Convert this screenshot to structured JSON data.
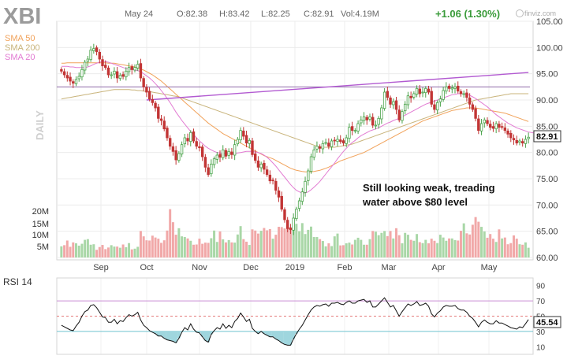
{
  "header": {
    "symbol": "XBI",
    "date": "May 24",
    "open": "O:82.38",
    "high": "H:83.42",
    "low": "L:82.25",
    "close": "C:82.91",
    "volume": "Vol:4.19M",
    "change": "+1.06 (1.30%)",
    "brand": "finviz.com"
  },
  "legend": {
    "sma50": "SMA 50",
    "sma200": "SMA 200",
    "sma20": "SMA 20"
  },
  "timeframe_label": "DAILY",
  "annotation": [
    "Still looking weak, treading",
    "water above $80 level"
  ],
  "last_price_label": "82.91",
  "rsi": {
    "title": "RSI 14",
    "last_label": "45.54",
    "ticks": [
      "90",
      "70",
      "50",
      "30",
      "10"
    ]
  },
  "colors": {
    "up": "#4aa34a",
    "down": "#c23535",
    "sma20": "#e27bd2",
    "sma50": "#f1a25a",
    "sma200": "#c8b37a",
    "trendline": "#b25ad1",
    "hline": "#8e6aa8",
    "rsi_line": "#111111",
    "rsi_band_high": "#c98bd4",
    "rsi_band_low": "#6ec2cf"
  },
  "chart_data": {
    "type": "candlestick",
    "price_axis": {
      "ticks": [
        "105.00",
        "100.00",
        "95.00",
        "90.00",
        "85.00",
        "80.00",
        "75.00",
        "70.00",
        "65.00",
        "60.00"
      ],
      "range": [
        60,
        105
      ]
    },
    "volume_axis": {
      "ticks": [
        "20M",
        "15M",
        "10M",
        "5M"
      ]
    },
    "x_axis": {
      "ticks": [
        "Sep",
        "Oct",
        "Nov",
        "Dec",
        "2019",
        "Feb",
        "Mar",
        "Apr",
        "May"
      ]
    },
    "price_series": {
      "name": "XBI",
      "close": [
        95.5,
        94.8,
        94.2,
        93.6,
        93.2,
        93.9,
        94.5,
        95.8,
        97.2,
        97.8,
        99.5,
        99.8,
        99.2,
        97.8,
        96.5,
        96.2,
        94.8,
        94.8,
        95.5,
        94.2,
        94.7,
        94.5,
        95.5,
        96.2,
        95.8,
        96.2,
        96.8,
        94.2,
        92.5,
        91.5,
        90.2,
        89.5,
        88.5,
        86.5,
        86.1,
        84.5,
        82.8,
        81.2,
        80.2,
        78.6,
        79.8,
        81.5,
        82.8,
        82.2,
        83.8,
        82.2,
        81.2,
        80.9,
        79.2,
        77.2,
        75.8,
        77.8,
        78.8,
        79.5,
        79.1,
        80.5,
        79.3,
        80.2,
        79.6,
        81.5,
        82.5,
        84.2,
        83.1,
        81.8,
        82.3,
        79.6,
        78.5,
        77.2,
        77.8,
        76.8,
        75.8,
        74.6,
        74.6,
        72.8,
        71.5,
        69.2,
        67.2,
        65.5,
        65.3,
        67.5,
        69.2,
        70.8,
        72.5,
        74.5,
        76.5,
        79.2,
        80.5,
        81.2,
        80.8,
        81.7,
        81.9,
        81.2,
        82.2,
        82.2,
        82.5,
        82.1,
        81.8,
        82.8,
        84.8,
        84.2,
        84.2,
        85.5,
        86.2,
        86.8,
        86.2,
        86.8,
        85.2,
        85.2,
        86.5,
        88.5,
        91.5,
        90.5,
        89.2,
        89.7,
        88.2,
        86.2,
        87.8,
        89.2,
        90.8,
        90.4,
        91.2,
        92.2,
        91.2,
        91.5,
        92.2,
        91.5,
        89.2,
        88.2,
        89.5,
        90.2,
        91.8,
        92.5,
        92.2,
        92.3,
        92.5,
        91.7,
        91.2,
        91.2,
        90.5,
        89.2,
        88.2,
        86.5,
        84.2,
        85.5,
        86.2,
        85.5,
        84.8,
        84.6,
        85.5,
        84.8,
        84.8,
        84.2,
        83.5,
        82.8,
        82.4,
        81.8,
        82.2,
        81.8,
        82.5,
        82.91
      ],
      "sma20": [
        96.4,
        96.4,
        96.4,
        96.3,
        96.3,
        96.2,
        96.2,
        96.2,
        96.2,
        96.3,
        96.5,
        96.8,
        97,
        97.2,
        97.3,
        97.3,
        97.2,
        97,
        96.8,
        96.6,
        96.4,
        96.2,
        96,
        95.9,
        95.8,
        95.7,
        95.6,
        95.4,
        95,
        94.6,
        94.2,
        93.7,
        93.1,
        92.5,
        91.8,
        91.1,
        90.3,
        89.5,
        88.6,
        87.7,
        86.9,
        86.1,
        85.4,
        84.7,
        84,
        83.4,
        82.8,
        82.2,
        81.7,
        81.2,
        80.8,
        80.5,
        80.2,
        80,
        79.9,
        79.8,
        79.8,
        79.8,
        79.8,
        79.8,
        79.9,
        80,
        80.1,
        80.2,
        80.2,
        80.2,
        80.1,
        80,
        79.8,
        79.5,
        79.1,
        78.6,
        78,
        77.4,
        76.7,
        76,
        75.3,
        74.6,
        73.9,
        73.3,
        72.8,
        72.5,
        72.3,
        72.3,
        72.5,
        72.9,
        73.4,
        73.9,
        74.5,
        75.2,
        75.9,
        76.6,
        77.3,
        78,
        78.8,
        79.5,
        80.2,
        80.8,
        81.4,
        81.9,
        82.3,
        82.8,
        83.2,
        83.5,
        83.8,
        84.1,
        84.3,
        84.5,
        84.7,
        85,
        85.3,
        85.6,
        85.8,
        86.1,
        86.3,
        86.5,
        86.8,
        87.1,
        87.4,
        87.7,
        88,
        88.3,
        88.6,
        88.9,
        89.2,
        89.4,
        89.6,
        89.8,
        90,
        90.2,
        90.4,
        90.6,
        90.8,
        91,
        91.1,
        91.2,
        91.2,
        91.2,
        91.1,
        90.9,
        90.6,
        90.3,
        89.9,
        89.5,
        89.1,
        88.7,
        88.2,
        87.7,
        87.2,
        86.8,
        86.4,
        86,
        85.6,
        85.3,
        85,
        84.7,
        84.5,
        84.3,
        84.1,
        83.9,
        83.8,
        83.7
      ],
      "sma50": [
        97,
        97,
        97.1,
        97.1,
        97.1,
        97.1,
        97.1,
        97.1,
        97.1,
        97.1,
        97.1,
        97.1,
        97.1,
        97.1,
        97.1,
        97.1,
        97,
        97,
        97,
        96.9,
        96.8,
        96.7,
        96.6,
        96.5,
        96.4,
        96.3,
        96.1,
        95.9,
        95.7,
        95.4,
        95.1,
        94.8,
        94.4,
        94,
        93.6,
        93.1,
        92.6,
        92.1,
        91.6,
        91.1,
        90.6,
        90.1,
        89.6,
        89.1,
        88.6,
        88.1,
        87.6,
        87.1,
        86.6,
        86.1,
        85.6,
        85.2,
        84.8,
        84.4,
        84,
        83.6,
        83.3,
        83,
        82.7,
        82.4,
        82.1,
        81.8,
        81.5,
        81.2,
        80.9,
        80.6,
        80.3,
        80,
        79.7,
        79.4,
        79.2,
        79,
        78.8,
        78.5,
        78.2,
        77.9,
        77.6,
        77.3,
        77,
        76.8,
        76.6,
        76.5,
        76.4,
        76.3,
        76.3,
        76.3,
        76.4,
        76.5,
        76.6,
        76.8,
        77,
        77.2,
        77.5,
        77.8,
        78.1,
        78.4,
        78.6,
        78.8,
        79,
        79.2,
        79.4,
        79.6,
        79.8,
        80,
        80.3,
        80.6,
        80.9,
        81.2,
        81.5,
        81.8,
        82.1,
        82.4,
        82.7,
        83,
        83.3,
        83.6,
        83.9,
        84.2,
        84.5,
        84.8,
        85.1,
        85.4,
        85.7,
        86,
        86.2,
        86.4,
        86.6,
        86.8,
        87,
        87.2,
        87.4,
        87.6,
        87.8,
        88,
        88.1,
        88.2,
        88.3,
        88.4,
        88.5,
        88.5,
        88.5,
        88.5,
        88.4,
        88.3,
        88.2,
        88.1,
        88,
        87.9,
        87.8,
        87.7,
        87.6,
        87.5,
        87.3,
        87.1,
        86.9,
        86.7,
        86.5,
        86.3,
        86.1,
        85.9
      ],
      "sma200": [
        90.2,
        90.3,
        90.4,
        90.5,
        90.6,
        90.7,
        90.8,
        90.9,
        91,
        91.1,
        91.2,
        91.3,
        91.4,
        91.5,
        91.6,
        91.7,
        91.8,
        91.9,
        92,
        92,
        92,
        92,
        92,
        92,
        91.9,
        91.9,
        91.8,
        91.8,
        91.7,
        91.6,
        91.6,
        91.5,
        91.4,
        91.3,
        91.2,
        91.1,
        91,
        90.9,
        90.8,
        90.7,
        90.6,
        90.4,
        90.2,
        90,
        89.8,
        89.6,
        89.4,
        89.2,
        89,
        88.8,
        88.6,
        88.4,
        88.2,
        88,
        87.8,
        87.6,
        87.4,
        87.2,
        87,
        86.8,
        86.6,
        86.4,
        86.2,
        86,
        85.8,
        85.6,
        85.4,
        85.2,
        85,
        84.8,
        84.6,
        84.4,
        84.2,
        84,
        83.8,
        83.6,
        83.4,
        83.2,
        83,
        82.8,
        82.6,
        82.4,
        82.2,
        82,
        81.8,
        81.6,
        81.4,
        81.2,
        81,
        81,
        81,
        81,
        81,
        81,
        81.1,
        81.2,
        81.3,
        81.4,
        81.5,
        81.6,
        81.8,
        82,
        82.2,
        82.4,
        82.6,
        82.8,
        83,
        83.2,
        83.4,
        83.6,
        83.8,
        84,
        84.2,
        84.4,
        84.6,
        84.8,
        85,
        85.2,
        85.4,
        85.6,
        85.8,
        86,
        86.2,
        86.4,
        86.6,
        86.8,
        87,
        87.2,
        87.4,
        87.6,
        87.8,
        88,
        88.2,
        88.4,
        88.6,
        88.8,
        89,
        89.2,
        89.4,
        89.6,
        89.8,
        90,
        90.1,
        90.2,
        90.3,
        90.4,
        90.5,
        90.6,
        90.7,
        90.8,
        90.9,
        91,
        91.1,
        91.2,
        91.2,
        91.2,
        91.2,
        91.2,
        91.2,
        91.2
      ]
    },
    "horizontal_line": 92.5,
    "trendline": [
      [
        29,
        90
      ],
      [
        153,
        95
      ]
    ],
    "rsi_series": {
      "name": "RSI 14",
      "values": [
        38,
        36,
        34,
        32,
        31,
        37,
        42,
        50,
        56,
        58,
        64,
        65,
        61,
        55,
        49,
        48,
        42,
        42,
        46,
        40,
        44,
        43,
        48,
        52,
        50,
        52,
        55,
        45,
        38,
        35,
        31,
        29,
        27,
        24,
        24,
        21,
        19,
        18,
        17,
        15,
        21,
        29,
        35,
        32,
        40,
        33,
        29,
        28,
        23,
        18,
        16,
        26,
        31,
        35,
        33,
        40,
        34,
        38,
        35,
        43,
        47,
        54,
        49,
        43,
        46,
        34,
        30,
        27,
        30,
        27,
        25,
        23,
        23,
        20,
        18,
        15,
        13,
        12,
        12,
        20,
        27,
        33,
        38,
        45,
        52,
        58,
        62,
        64,
        63,
        65,
        66,
        63,
        67,
        67,
        68,
        66,
        65,
        68,
        70,
        67,
        67,
        70,
        71,
        72,
        68,
        70,
        62,
        62,
        66,
        70,
        74,
        68,
        62,
        64,
        57,
        50,
        56,
        61,
        66,
        64,
        66,
        69,
        64,
        65,
        67,
        63,
        53,
        49,
        54,
        57,
        62,
        64,
        63,
        63,
        64,
        60,
        58,
        58,
        55,
        50,
        47,
        42,
        36,
        42,
        45,
        42,
        40,
        40,
        44,
        41,
        41,
        39,
        37,
        35,
        34,
        33,
        36,
        35,
        40,
        45.54
      ]
    },
    "volume_series": {
      "name": "Volume",
      "values": [
        4.8,
        5.3,
        7.3,
        4.6,
        6.5,
        6.1,
        5.1,
        5.9,
        7.6,
        7.9,
        5.5,
        5.7,
        3.3,
        4.5,
        5.4,
        3.6,
        4.3,
        5.3,
        4.7,
        4.7,
        4.2,
        5.6,
        4.4,
        6.2,
        3.5,
        3.8,
        4.6,
        11.4,
        9.1,
        7.4,
        7.3,
        9.4,
        8.6,
        8.1,
        6.3,
        7.4,
        11.6,
        20.8,
        15.2,
        9.8,
        12.6,
        9.1,
        8.8,
        8.2,
        7.2,
        5.5,
        5.6,
        8.1,
        5.9,
        6.4,
        6.3,
        8.3,
        11.6,
        6.7,
        11.2,
        7.8,
        6.5,
        7.5,
        6.5,
        6.4,
        9.9,
        13.5,
        7.9,
        6.8,
        5.4,
        12.1,
        11.6,
        10.3,
        11.5,
        12.7,
        11.7,
        12.2,
        8.1,
        9.8,
        13.2,
        13.1,
        12.5,
        12.9,
        11.9,
        13.9,
        14.5,
        11.3,
        14.8,
        10.1,
        11.9,
        13.3,
        8.8,
        8.8,
        7.9,
        7.1,
        4.8,
        6.1,
        4.9,
        9.1,
        10.3,
        5.2,
        5.3,
        6.1,
        6.4,
        5.6,
        7.6,
        8.5,
        7.6,
        5.5,
        5.5,
        7.9,
        11.4,
        11.1,
        9.6,
        10.6,
        11.4,
        9.2,
        11.4,
        8.2,
        12.6,
        9.6,
        6.1,
        10.6,
        9.8,
        7.6,
        7.2,
        10.1,
        6.6,
        6.2,
        7.6,
        6.1,
        8.1,
        7.2,
        6.2,
        9.8,
        8.6,
        7.2,
        8.2,
        8.2,
        7.5,
        7.3,
        11.5,
        14.7,
        10.4,
        9.9,
        14.1,
        17.4,
        15.4,
        13.2,
        11.2,
        8.5,
        10.1,
        8.1,
        6.7,
        12.1,
        8.2,
        8.6,
        5.7,
        6.2,
        9.5,
        8.1,
        5.7,
        5.5,
        6.5,
        4.2
      ]
    }
  }
}
